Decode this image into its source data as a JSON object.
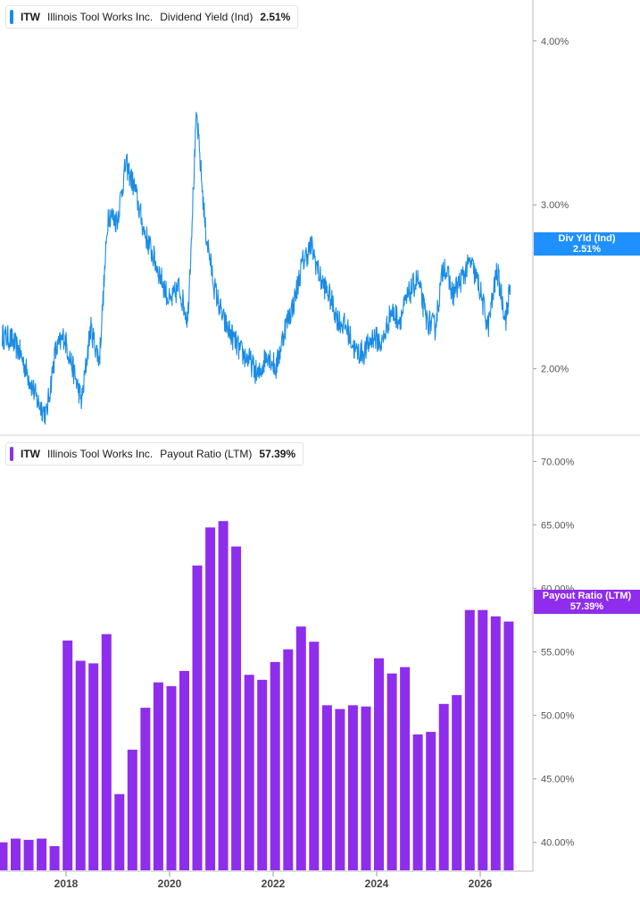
{
  "colors": {
    "yield_line": "#1a8ce6",
    "payout_bar": "#8f2ded",
    "tag_yield": "#1e90ff",
    "tag_payout": "#8f2ded"
  },
  "top_panel": {
    "legend": {
      "ticker": "ITW",
      "company": "Illinois Tool Works Inc.",
      "metric": "Dividend Yield (Ind)",
      "value": "2.51%"
    },
    "tag": {
      "label": "Div Yld (Ind)",
      "value": "2.51%"
    }
  },
  "bottom_panel": {
    "legend": {
      "ticker": "ITW",
      "company": "Illinois Tool Works Inc.",
      "metric": "Payout Ratio (LTM)",
      "value": "57.39%"
    },
    "tag": {
      "label": "Payout Ratio (LTM)",
      "value": "57.39%"
    }
  },
  "chart_data": [
    {
      "type": "line",
      "title": "ITW Illinois Tool Works Inc. Dividend Yield (Ind) 2.51%",
      "ylim": [
        1.6,
        4.25
      ],
      "y_ticks": [
        "2.00%",
        "3.00%",
        "4.00%"
      ],
      "x_ticks": [
        "2018",
        "2020",
        "2022",
        "2024",
        "2026"
      ],
      "series": [
        {
          "name": "Dividend Yield (Ind)",
          "x": [
            "2017-01",
            "2017-03",
            "2017-05",
            "2017-07",
            "2017-09",
            "2017-11",
            "2018-01",
            "2018-03",
            "2018-05",
            "2018-07",
            "2018-09",
            "2018-11",
            "2019-01",
            "2019-03",
            "2019-05",
            "2019-07",
            "2019-09",
            "2019-11",
            "2020-01",
            "2020-03",
            "2020-05",
            "2020-07",
            "2020-09",
            "2020-11",
            "2021-01",
            "2021-03",
            "2021-05",
            "2021-07",
            "2021-09",
            "2021-11",
            "2022-01",
            "2022-03",
            "2022-05",
            "2022-07",
            "2022-09",
            "2022-11",
            "2023-01",
            "2023-03",
            "2023-05",
            "2023-07",
            "2023-09",
            "2023-11",
            "2024-01",
            "2024-03",
            "2024-05",
            "2024-07",
            "2024-09",
            "2024-11",
            "2025-01",
            "2025-03",
            "2025-05",
            "2025-07",
            "2025-09",
            "2025-11",
            "2026-01",
            "2026-03",
            "2026-05",
            "2026-07",
            "2026-08"
          ],
          "values": [
            2.2,
            2.18,
            2.1,
            1.95,
            1.8,
            1.72,
            2.1,
            2.2,
            2.0,
            1.8,
            2.25,
            2.05,
            2.95,
            2.9,
            3.25,
            3.1,
            2.85,
            2.7,
            2.55,
            2.4,
            2.5,
            2.3,
            3.55,
            2.85,
            2.5,
            2.3,
            2.2,
            2.1,
            2.05,
            1.95,
            2.1,
            2.0,
            2.25,
            2.4,
            2.65,
            2.75,
            2.55,
            2.45,
            2.3,
            2.25,
            2.1,
            2.1,
            2.2,
            2.15,
            2.35,
            2.3,
            2.45,
            2.55,
            2.3,
            2.25,
            2.65,
            2.45,
            2.55,
            2.65,
            2.5,
            2.25,
            2.6,
            2.3,
            2.51
          ]
        }
      ]
    },
    {
      "type": "bar",
      "title": "ITW Illinois Tool Works Inc. Payout Ratio (LTM) 57.39%",
      "ylim": [
        37.8,
        72.0
      ],
      "y_ticks": [
        "40.00%",
        "45.00%",
        "50.00%",
        "55.00%",
        "60.00%",
        "65.00%",
        "70.00%"
      ],
      "x_ticks": [
        "2018",
        "2020",
        "2022",
        "2024",
        "2026"
      ],
      "categories": [
        "2016 Q4",
        "2017 Q1",
        "2017 Q2",
        "2017 Q3",
        "2017 Q4",
        "2018 Q1",
        "2018 Q2",
        "2018 Q3",
        "2018 Q4",
        "2019 Q1",
        "2019 Q2",
        "2019 Q3",
        "2019 Q4",
        "2020 Q1",
        "2020 Q2",
        "2020 Q3",
        "2020 Q4",
        "2021 Q1",
        "2021 Q2",
        "2021 Q3",
        "2021 Q4",
        "2022 Q1",
        "2022 Q2",
        "2022 Q3",
        "2022 Q4",
        "2023 Q1",
        "2023 Q2",
        "2023 Q3",
        "2023 Q4",
        "2024 Q1",
        "2024 Q2",
        "2024 Q3",
        "2024 Q4",
        "2025 Q1",
        "2025 Q2",
        "2025 Q3",
        "2025 Q4",
        "2026 Q1",
        "2026 Q2",
        "2026 Q3"
      ],
      "series": [
        {
          "name": "Payout Ratio (LTM)",
          "values": [
            40.0,
            40.3,
            40.2,
            40.3,
            39.7,
            55.9,
            54.3,
            54.1,
            56.4,
            43.8,
            47.3,
            50.6,
            52.6,
            52.3,
            53.5,
            61.8,
            64.8,
            65.3,
            63.3,
            53.2,
            52.8,
            54.2,
            55.2,
            57.0,
            55.8,
            50.8,
            50.5,
            50.8,
            50.7,
            54.5,
            53.3,
            53.8,
            48.5,
            48.7,
            50.9,
            51.6,
            58.3,
            58.3,
            57.8,
            57.39
          ]
        }
      ]
    }
  ]
}
